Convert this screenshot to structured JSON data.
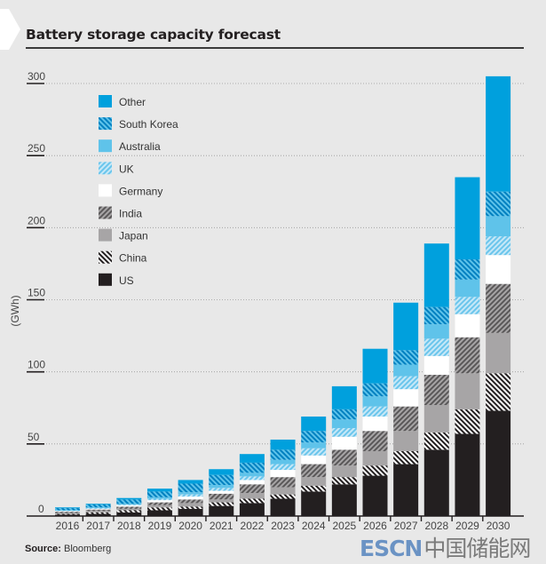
{
  "title": "Battery storage capacity forecast",
  "source_label": "Source:",
  "source_value": "Bloomberg",
  "watermark": {
    "latin": "ESCN",
    "cjk": "中国储能网"
  },
  "chart_data": {
    "type": "bar",
    "stacked": true,
    "title": "Battery storage capacity forecast",
    "xlabel": "",
    "ylabel": "(GWh)",
    "ylim": [
      0,
      300
    ],
    "yticks": [
      0,
      50,
      100,
      150,
      200,
      250,
      300
    ],
    "grid": true,
    "legend_position": "top-left",
    "categories": [
      "2016",
      "2017",
      "2018",
      "2019",
      "2020",
      "2021",
      "2022",
      "2023",
      "2024",
      "2025",
      "2026",
      "2027",
      "2028",
      "2029",
      "2030"
    ],
    "series": [
      {
        "name": "US",
        "color": "#231f20",
        "pattern": "solid",
        "values": [
          1,
          1.5,
          2.5,
          4,
          5,
          7,
          9,
          12,
          17,
          22,
          28,
          36,
          46,
          57,
          73
        ]
      },
      {
        "name": "China",
        "color": "#231f20",
        "pattern": "hatch-dark",
        "values": [
          0.5,
          1,
          1.5,
          2,
          1.5,
          2.5,
          3,
          3,
          4,
          5,
          7,
          9,
          12,
          17,
          26
        ]
      },
      {
        "name": "Japan",
        "color": "#a7a5a6",
        "pattern": "solid",
        "values": [
          0.5,
          1,
          1,
          1.5,
          2.5,
          2,
          4,
          5,
          6,
          8,
          10,
          14,
          19,
          25,
          28
        ]
      },
      {
        "name": "India",
        "color": "#6d6b6c",
        "pattern": "hatch-grey",
        "values": [
          1,
          1,
          1.5,
          2,
          2.5,
          4,
          6,
          7,
          9,
          11,
          14,
          17,
          21,
          25,
          34
        ]
      },
      {
        "name": "Germany",
        "color": "#ffffff",
        "pattern": "solid",
        "values": [
          0.5,
          0.5,
          1,
          1.5,
          2,
          2,
          3,
          5,
          6,
          9,
          10,
          12,
          13,
          16,
          20
        ]
      },
      {
        "name": "UK",
        "color": "#8fd2ef",
        "pattern": "hatch-light",
        "values": [
          0.2,
          0.5,
          0.5,
          1,
          1.5,
          2,
          2.5,
          4,
          5,
          6,
          7,
          9,
          12,
          12,
          13
        ]
      },
      {
        "name": "Australia",
        "color": "#5fc3ea",
        "pattern": "solid",
        "values": [
          0.3,
          0.5,
          0.5,
          1,
          1.5,
          2,
          2.5,
          3,
          4,
          6,
          7,
          8,
          10,
          12,
          14
        ]
      },
      {
        "name": "South Korea",
        "color": "#009fdc",
        "pattern": "hatch-blue",
        "values": [
          1.5,
          2,
          3,
          4,
          6,
          7,
          7,
          7,
          8,
          7,
          9,
          10,
          12,
          14,
          17
        ]
      },
      {
        "name": "Other",
        "color": "#00a0dd",
        "pattern": "solid",
        "values": [
          0.5,
          0.5,
          1,
          2,
          2.5,
          4,
          6,
          7,
          10,
          16,
          24,
          33,
          44,
          57,
          80
        ]
      }
    ],
    "legend_order": [
      "Other",
      "South Korea",
      "Australia",
      "UK",
      "Germany",
      "India",
      "Japan",
      "China",
      "US"
    ]
  }
}
